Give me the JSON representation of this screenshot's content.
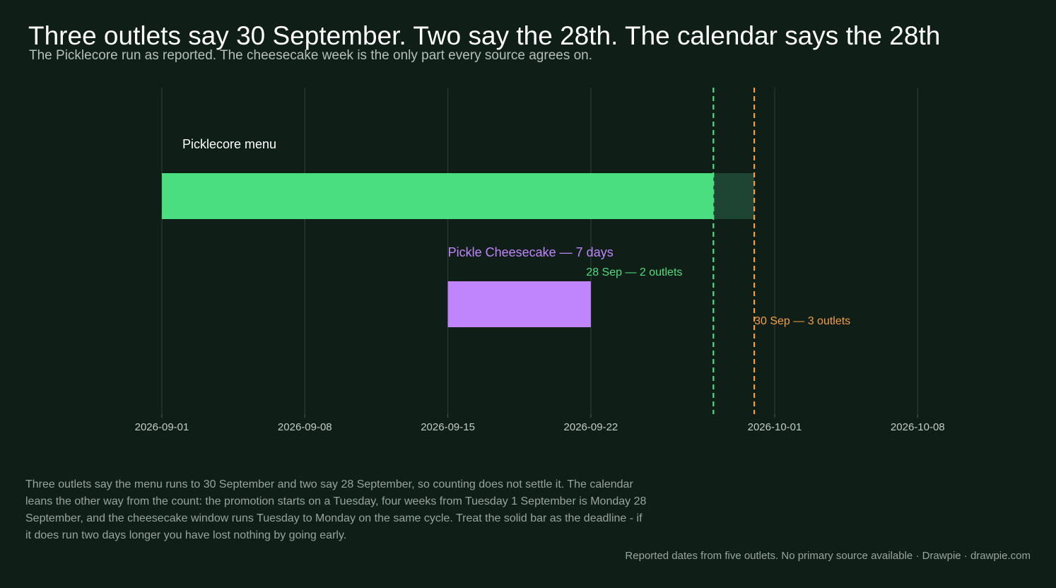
{
  "header": {
    "title": "Three outlets say 30 September. Two say the 28th. The calendar says the 28th",
    "subtitle": "The Picklecore run as reported. The cheesecake week is the only part every source agrees on."
  },
  "chart_data": {
    "type": "gantt",
    "x_axis": {
      "ticks": [
        "2026-09-01",
        "2026-09-08",
        "2026-09-15",
        "2026-09-22",
        "2026-10-01",
        "2026-10-08"
      ],
      "range": [
        "2026-09-01",
        "2026-10-10"
      ],
      "grid": true
    },
    "tasks": [
      {
        "label": "Picklecore menu",
        "start": "2026-09-01",
        "end": "2026-09-28",
        "extended_end": "2026-09-30",
        "color": "#4ade80",
        "extended_color": "#1e4434"
      },
      {
        "label": "Pickle Cheesecake — 7 days",
        "start": "2026-09-15",
        "end": "2026-09-22",
        "color": "#c084fc"
      }
    ],
    "markers": [
      {
        "label": "28 Sep — 2 outlets",
        "date": "2026-09-28",
        "color": "#4ade80"
      },
      {
        "label": "30 Sep — 3 outlets",
        "date": "2026-09-30",
        "color": "#f59e42"
      }
    ]
  },
  "note": "Three outlets say the menu runs to 30 September and two say 28 September, so counting does not settle it. The calendar leans the other way from the count: the promotion starts on a Tuesday, four weeks from Tuesday 1 September is Monday 28 September, and the cheesecake window runs Tuesday to Monday on the same cycle. Treat the solid bar as the deadline - if it does run two days longer you have lost nothing by going early.",
  "footer": "Reported dates from five outlets. No primary source available  ·  Drawpie · drawpie.com"
}
